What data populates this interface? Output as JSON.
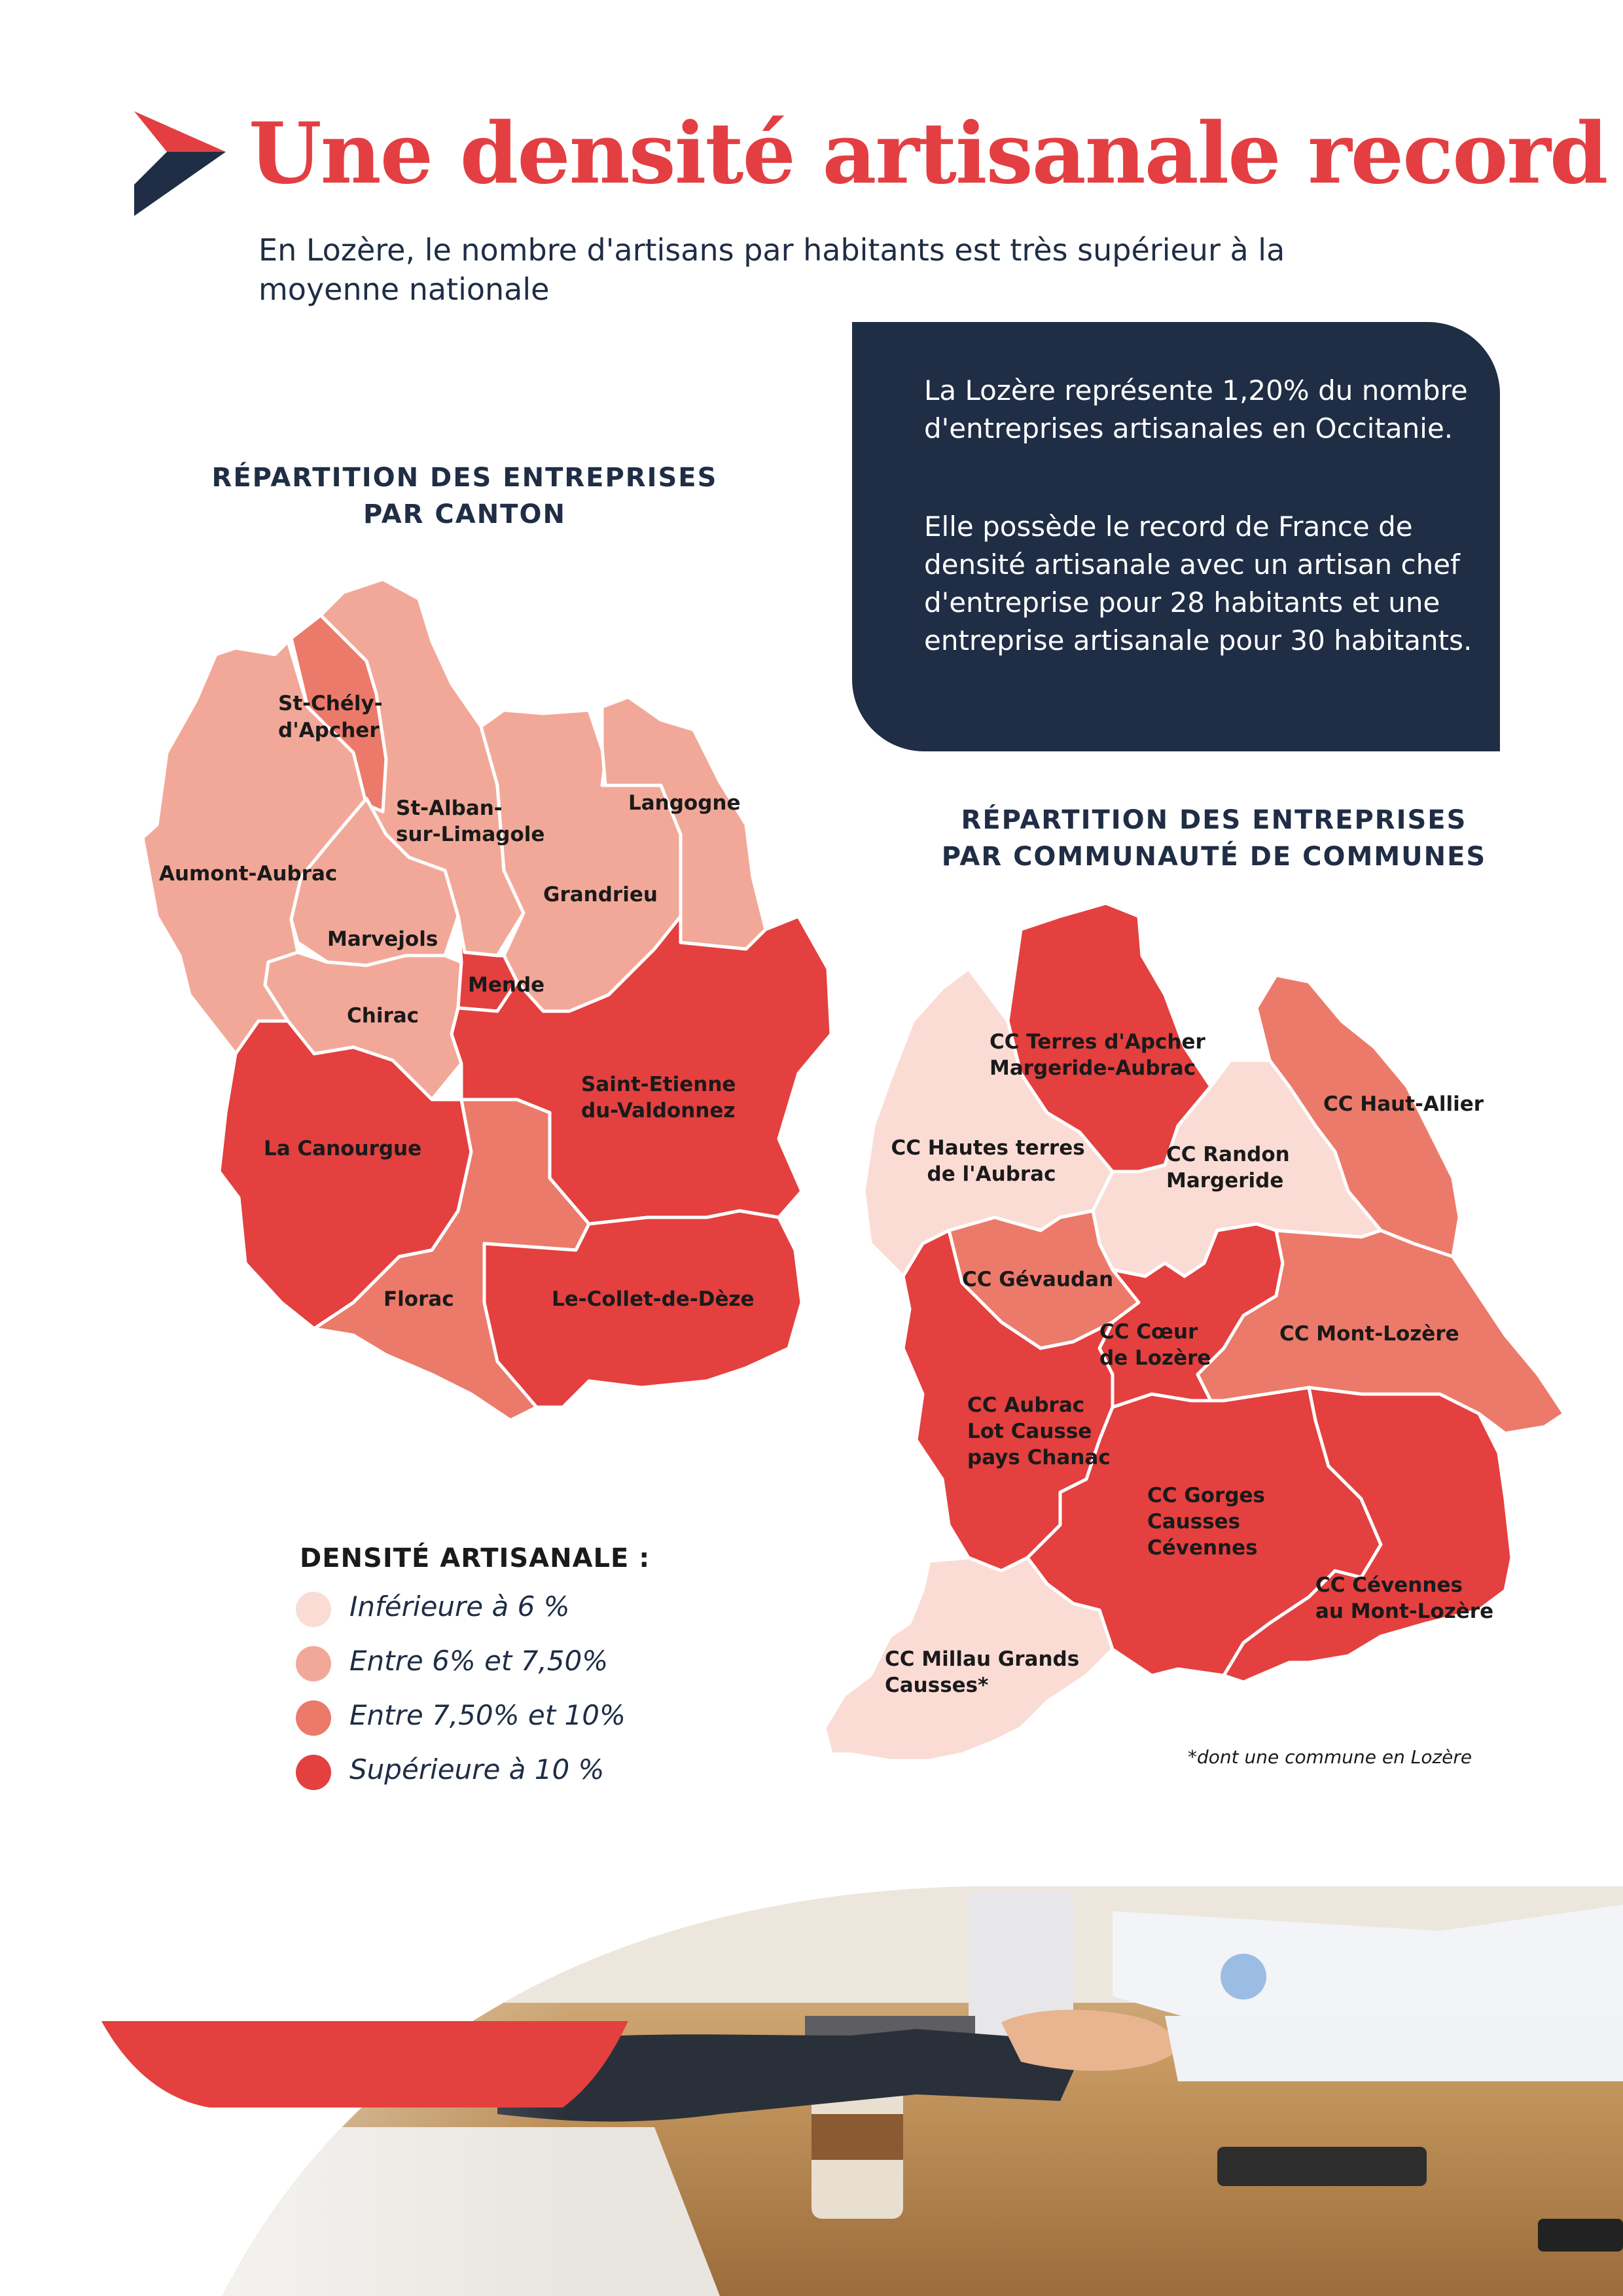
{
  "header": {
    "title": "Une densité artisanale record !",
    "subtitle": "En Lozère, le nombre d'artisans par habitants est très supérieur à la moyenne nationale",
    "logo_icon": "brand-chevron-logo"
  },
  "infobox": {
    "p1": "La Lozère représente 1,20% du nombre d'entreprises artisanales en Occitanie.",
    "p2": "Elle possède le record de France de densité artisanale avec un artisan chef d'entreprise pour 28 habitants et une entreprise artisanale pour 30 habitants."
  },
  "colors": {
    "title_red": "#e33f43",
    "navy": "#1f2d45",
    "lt6": "#fbdcd5",
    "r6_75": "#f2a898",
    "r75_10": "#ec7a6a",
    "gt10": "#e3403f"
  },
  "canton_map": {
    "title_line1": "RÉPARTITION DES ENTREPRISES",
    "title_line2": "PAR CANTON",
    "regions": [
      {
        "name": "St-Chély-d'Apcher",
        "lines": [
          "St-Chély-",
          "d'Apcher"
        ],
        "class": "7,50% - 10%"
      },
      {
        "name": "St-Alban-sur-Limagole",
        "lines": [
          "St-Alban-",
          "sur-Limagole"
        ],
        "class": "6% - 7,50%"
      },
      {
        "name": "Langogne",
        "lines": [
          "Langogne"
        ],
        "class": "6% - 7,50%"
      },
      {
        "name": "Aumont-Aubrac",
        "lines": [
          "Aumont-Aubrac"
        ],
        "class": "6% - 7,50%"
      },
      {
        "name": "Grandrieu",
        "lines": [
          "Grandrieu"
        ],
        "class": "6% - 7,50%"
      },
      {
        "name": "Marvejols",
        "lines": [
          "Marvejols"
        ],
        "class": "6% - 7,50%"
      },
      {
        "name": "Mende",
        "lines": [
          "Mende"
        ],
        "class": "> 10%"
      },
      {
        "name": "Chirac",
        "lines": [
          "Chirac"
        ],
        "class": "6% - 7,50%"
      },
      {
        "name": "Saint-Etienne-du-Valdonnez",
        "lines": [
          "Saint-Etienne",
          "du-Valdonnez"
        ],
        "class": "> 10%"
      },
      {
        "name": "La Canourgue",
        "lines": [
          "La Canourgue"
        ],
        "class": "> 10%"
      },
      {
        "name": "Florac",
        "lines": [
          "Florac"
        ],
        "class": "7,50% - 10%"
      },
      {
        "name": "Le-Collet-de-Dèze",
        "lines": [
          "Le-Collet-de-Dèze"
        ],
        "class": "> 10%"
      }
    ]
  },
  "cc_map": {
    "title_line1": "RÉPARTITION DES ENTREPRISES",
    "title_line2": "PAR COMMUNAUTÉ DE COMMUNES",
    "regions": [
      {
        "name": "CC Terres d'Apcher Margeride-Aubrac",
        "lines": [
          "CC Terres d'Apcher",
          "Margeride-Aubrac"
        ],
        "class": "> 10%"
      },
      {
        "name": "CC Haut-Allier",
        "lines": [
          "CC Haut-Allier"
        ],
        "class": "7,50% - 10%"
      },
      {
        "name": "CC Hautes terres de l'Aubrac",
        "lines": [
          "CC Hautes terres",
          "de l'Aubrac"
        ],
        "class": "< 6%"
      },
      {
        "name": "CC Randon Margeride",
        "lines": [
          "CC Randon",
          "Margeride"
        ],
        "class": "< 6%"
      },
      {
        "name": "CC Gévaudan",
        "lines": [
          "CC Gévaudan"
        ],
        "class": "7,50% - 10%"
      },
      {
        "name": "CC Cœur de Lozère",
        "lines": [
          "CC Cœur",
          "de Lozère"
        ],
        "class": "> 10%"
      },
      {
        "name": "CC Mont-Lozère",
        "lines": [
          "CC Mont-Lozère"
        ],
        "class": "7,50% - 10%"
      },
      {
        "name": "CC Aubrac Lot Causse pays Chanac",
        "lines": [
          "CC Aubrac",
          "Lot Causse",
          "pays Chanac"
        ],
        "class": "> 10%"
      },
      {
        "name": "CC Gorges Causses Cévennes",
        "lines": [
          "CC Gorges",
          "Causses",
          "Cévennes"
        ],
        "class": "> 10%"
      },
      {
        "name": "CC Cévennes au Mont-Lozère",
        "lines": [
          "CC Cévennes",
          "au Mont-Lozère"
        ],
        "class": "> 10%"
      },
      {
        "name": "CC Millau Grands Causses*",
        "lines": [
          "CC Millau Grands",
          "Causses*"
        ],
        "class": "< 6%"
      }
    ],
    "footnote": "*dont une commune en Lozère"
  },
  "legend": {
    "title": "DENSITÉ ARTISANALE :",
    "items": [
      {
        "label": "Inférieure à 6 %",
        "color": "#fbdcd5"
      },
      {
        "label": "Entre 6% et 7,50%",
        "color": "#f2a898"
      },
      {
        "label": "Entre 7,50% et 10%",
        "color": "#ec7a6a"
      },
      {
        "label": "Supérieure à 10 %",
        "color": "#e3403f"
      }
    ]
  }
}
